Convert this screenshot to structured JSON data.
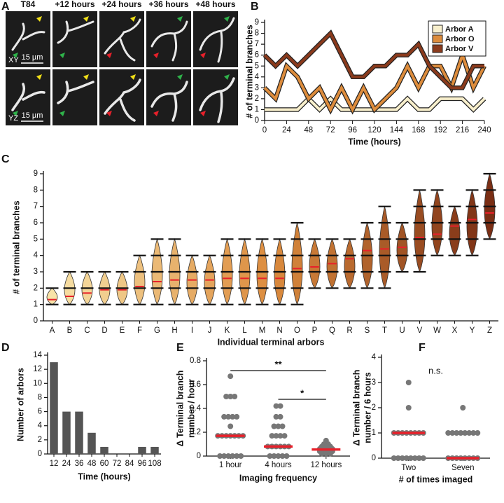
{
  "panel_labels": [
    "A",
    "B",
    "C",
    "D",
    "E",
    "F"
  ],
  "micrographs": {
    "columns": [
      "T84",
      "+12 hours",
      "+24 hours",
      "+36 hours",
      "+48 hours"
    ],
    "rows": [
      "XY",
      "YZ"
    ],
    "scale_bars": [
      "15 µm",
      "15 µm"
    ]
  },
  "chart_data": [
    {
      "type": "line",
      "xlabel": "Time (hours)",
      "ylabel": [
        "# of terminal branches"
      ],
      "x": [
        0,
        12,
        24,
        36,
        48,
        60,
        72,
        84,
        96,
        108,
        120,
        132,
        144,
        156,
        168,
        180,
        192,
        204,
        216,
        228,
        240
      ],
      "xlim": [
        0,
        240
      ],
      "xticks": [
        0,
        24,
        48,
        72,
        96,
        120,
        144,
        168,
        192,
        216,
        240
      ],
      "ylim": [
        0,
        9
      ],
      "yticks": [
        0,
        1,
        2,
        3,
        4,
        5,
        6,
        7,
        8,
        9
      ],
      "legend": "upper right",
      "series": [
        {
          "name": "Arbor A",
          "color": "#f8efcc",
          "values": [
            1,
            1,
            1,
            1,
            2,
            1,
            2,
            1,
            1,
            1,
            1,
            1,
            1,
            2,
            1,
            1,
            2,
            2,
            2,
            1,
            2
          ]
        },
        {
          "name": "Arbor O",
          "color": "#dd8c3c",
          "values": [
            3,
            2,
            5,
            4,
            2,
            3,
            1,
            3,
            1,
            3,
            1,
            2,
            3,
            5,
            3,
            5,
            5,
            3,
            6,
            3,
            5
          ]
        },
        {
          "name": "Arbor V",
          "color": "#8a3a1c",
          "values": [
            6,
            5,
            6,
            5,
            6,
            7,
            8,
            6,
            4,
            4,
            5,
            5,
            6,
            6,
            7,
            5,
            4,
            3,
            3,
            5,
            5
          ]
        }
      ]
    },
    {
      "type": "violin",
      "xlabel": "Individual terminal arbors",
      "ylabel": [
        "# of terminal branches"
      ],
      "categories": [
        "A",
        "B",
        "C",
        "D",
        "E",
        "F",
        "G",
        "H",
        "I",
        "J",
        "K",
        "L",
        "M",
        "N",
        "O",
        "P",
        "Q",
        "R",
        "S",
        "T",
        "U",
        "V",
        "W",
        "X",
        "Y",
        "Z"
      ],
      "values": [
        1.3,
        1.5,
        1.7,
        1.9,
        1.9,
        2.1,
        2.4,
        2.5,
        2.5,
        2.5,
        2.6,
        2.6,
        2.6,
        2.6,
        3.2,
        3.3,
        3.5,
        3.8,
        4.3,
        4.4,
        4.5,
        5.1,
        5.3,
        5.8,
        6.2,
        6.6
      ],
      "min": [
        1,
        1,
        1,
        1,
        1,
        1,
        1,
        1,
        1,
        1,
        1,
        1,
        1,
        1,
        1,
        2,
        2,
        2,
        2,
        2,
        3,
        3,
        4,
        4,
        4,
        5
      ],
      "max": [
        2,
        3,
        3,
        3,
        3,
        4,
        5,
        5,
        4,
        4,
        5,
        5,
        5,
        5,
        6,
        5,
        5,
        5,
        6,
        7,
        6,
        8,
        8,
        7,
        8,
        9
      ],
      "color_scale": [
        "#f8e3a8",
        "#dc8c3e",
        "#7a2e14"
      ],
      "mean_color": "#e8202a",
      "ylim": [
        0,
        9
      ],
      "yticks": [
        0,
        1,
        2,
        3,
        4,
        5,
        6,
        7,
        8,
        9
      ]
    },
    {
      "type": "bar",
      "xlabel": "Time (hours)",
      "ylabel": [
        "Number of arbors"
      ],
      "categories": [
        "12",
        "24",
        "36",
        "48",
        "60",
        "72",
        "84",
        "96",
        "108"
      ],
      "values": [
        13,
        6,
        6,
        3,
        1,
        0,
        0,
        1,
        1
      ],
      "color": "#555555",
      "ylim": [
        0,
        14
      ],
      "yticks": [
        0,
        2,
        4,
        6,
        8,
        10,
        12,
        14
      ]
    },
    {
      "type": "strip",
      "xlabel": "Imaging frequency",
      "ylabel": [
        "Δ Terminal branch",
        "number / hour"
      ],
      "categories": [
        "1 hour",
        "4 hours",
        "12 hours"
      ],
      "values": [
        0.17,
        0.08,
        0.055
      ],
      "points": [
        [
          0.67,
          0.5,
          0.5,
          0.5,
          0.33,
          0.33,
          0.33,
          0.33,
          0.25,
          0.17,
          0.17,
          0.17,
          0.17,
          0.17,
          0.17,
          0.17,
          0,
          0,
          0,
          0,
          0,
          0
        ],
        [
          0.42,
          0.42,
          0.33,
          0.33,
          0.25,
          0.25,
          0.25,
          0.17,
          0.17,
          0.17,
          0.17,
          0.08,
          0.08,
          0.08,
          0.08,
          0.08,
          0.08,
          0,
          0,
          0,
          0,
          0
        ],
        [
          0.13,
          0.1,
          0.1,
          0.08,
          0.08,
          0.08,
          0.06,
          0.06,
          0.06,
          0.06,
          0.04,
          0.04,
          0.04,
          0.04,
          0.02,
          0.02,
          0.02
        ]
      ],
      "annotations": [
        "**",
        "*"
      ],
      "color": "#777777",
      "median_color": "#e8202a",
      "ylim": [
        0,
        0.8
      ],
      "yticks": [
        0,
        0.2,
        0.4,
        0.6,
        0.8
      ]
    },
    {
      "type": "strip",
      "xlabel": "# of times imaged",
      "ylabel": [
        "Δ Terminal branch",
        "number / 6 hours"
      ],
      "categories": [
        "Two",
        "Seven"
      ],
      "values": [
        1,
        0
      ],
      "points": [
        [
          3,
          2,
          1,
          1,
          1,
          1,
          1,
          1,
          1,
          1,
          0,
          0,
          0,
          0,
          0,
          0,
          0,
          0
        ],
        [
          2,
          1,
          1,
          1,
          1,
          1,
          1,
          1,
          1,
          0,
          0,
          0,
          0,
          0,
          0,
          0,
          0
        ]
      ],
      "annotations": [
        "n.s."
      ],
      "color": "#777777",
      "median_color": "#e8202a",
      "ylim": [
        0,
        4
      ],
      "yticks": [
        0,
        1,
        2,
        3,
        4
      ]
    }
  ]
}
